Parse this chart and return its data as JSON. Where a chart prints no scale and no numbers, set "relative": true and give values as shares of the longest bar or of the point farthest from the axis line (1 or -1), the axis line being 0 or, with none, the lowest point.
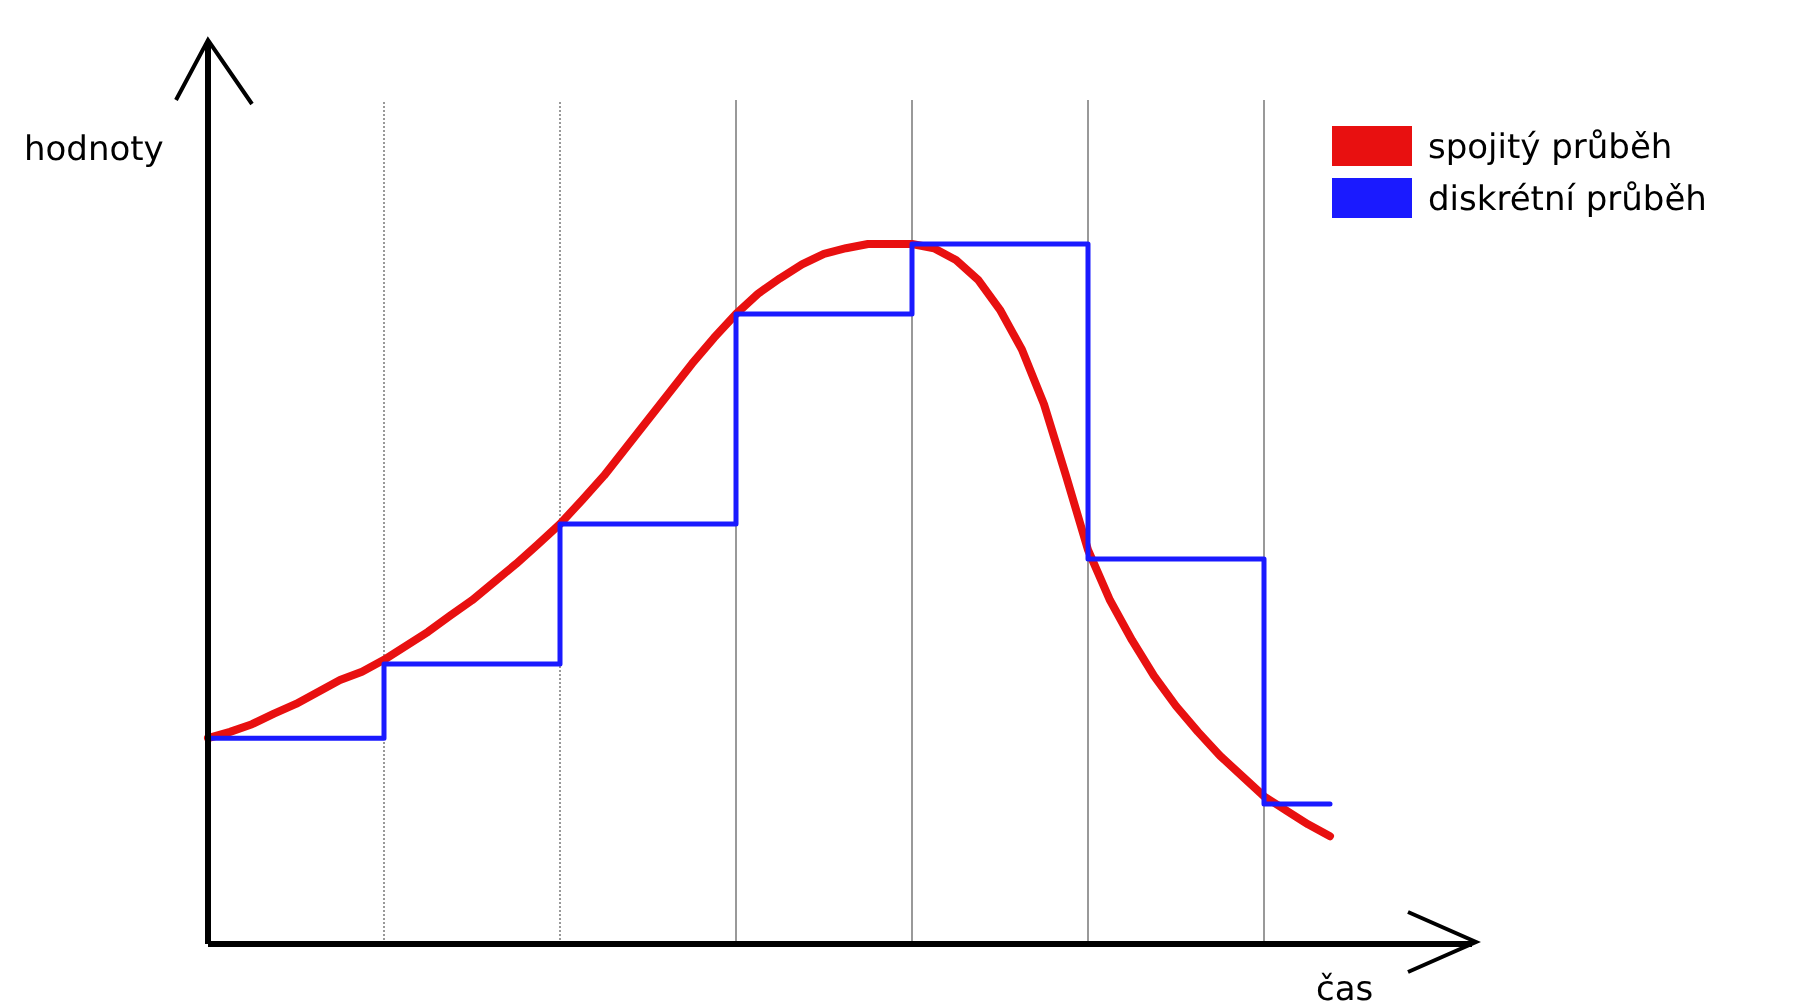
{
  "chart_data": {
    "type": "line",
    "relative": true,
    "xlabel": "čas",
    "ylabel": "hodnoty",
    "legend": "top right",
    "grid": "x",
    "categories": [
      null,
      null,
      null,
      null,
      null,
      null,
      null,
      null,
      null,
      null,
      null,
      null,
      null,
      null,
      null,
      null,
      null,
      null,
      null,
      null,
      null,
      null,
      null,
      null,
      null,
      null,
      null,
      null,
      null,
      null,
      null,
      null,
      null,
      null,
      null,
      null,
      null,
      null,
      null,
      null,
      null,
      null,
      null,
      null,
      null,
      null,
      null,
      null,
      null,
      null,
      null,
      null
    ],
    "series": [
      {
        "name": "spojitý průběh",
        "color": "#e81010",
        "values": [
          0.294,
          0.303,
          0.314,
          0.329,
          0.343,
          0.36,
          0.377,
          0.389,
          0.406,
          0.426,
          0.446,
          0.469,
          0.491,
          0.517,
          0.543,
          0.571,
          0.6,
          0.634,
          0.669,
          0.709,
          0.749,
          0.789,
          0.829,
          0.866,
          0.9,
          0.929,
          0.951,
          0.971,
          0.986,
          0.994,
          1,
          1,
          1,
          0.994,
          0.977,
          0.949,
          0.906,
          0.849,
          0.771,
          0.669,
          0.563,
          0.491,
          0.434,
          0.383,
          0.34,
          0.303,
          0.269,
          0.24,
          0.211,
          0.191,
          0.171,
          0.154
        ]
      },
      {
        "name": "diskrétní průběh",
        "color": "#1a1aff",
        "type": "step",
        "values": [
          0.294,
          0.294,
          0.294,
          0.294,
          0.294,
          0.294,
          0.294,
          0.294,
          0.4,
          0.4,
          0.4,
          0.4,
          0.4,
          0.4,
          0.4,
          0.4,
          0.6,
          0.6,
          0.6,
          0.6,
          0.6,
          0.6,
          0.6,
          0.6,
          0.9,
          0.9,
          0.9,
          0.9,
          0.9,
          0.9,
          0.9,
          0.9,
          1,
          1,
          1,
          1,
          1,
          1,
          1,
          1,
          0.55,
          0.55,
          0.55,
          0.55,
          0.55,
          0.55,
          0.55,
          0.55,
          0.2,
          0.2,
          0.2,
          0.2
        ]
      }
    ]
  }
}
